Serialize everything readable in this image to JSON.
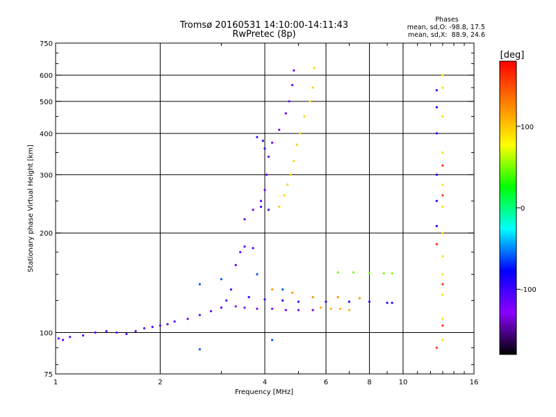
{
  "chart_data": {
    "type": "scatter",
    "title": "Tromsø 20160531 14:10:00-14:11:43",
    "subtitle": "RwPretec (8p)",
    "xlabel": "Frequency [MHz]",
    "ylabel": "Stationary phase Virtual Height [km]",
    "xscale": "log",
    "yscale": "log",
    "xlim": [
      1,
      16
    ],
    "ylim": [
      75,
      750
    ],
    "xticks": [
      {
        "value": 1,
        "label": "1"
      },
      {
        "value": 2,
        "label": "2"
      },
      {
        "value": 4,
        "label": "4"
      },
      {
        "value": 6,
        "label": "6"
      },
      {
        "value": 8,
        "label": "8"
      },
      {
        "value": 10,
        "label": "10"
      },
      {
        "value": 16,
        "label": "16"
      }
    ],
    "yticks": [
      {
        "value": 75,
        "label": "75"
      },
      {
        "value": 100,
        "label": "100"
      },
      {
        "value": 200,
        "label": "200"
      },
      {
        "value": 300,
        "label": "300"
      },
      {
        "value": 400,
        "label": "400"
      },
      {
        "value": 500,
        "label": "500"
      },
      {
        "value": 600,
        "label": "600"
      },
      {
        "value": 750,
        "label": "750"
      }
    ],
    "grid_x": [
      2,
      4,
      6,
      8,
      10
    ],
    "grid_y": [
      100,
      200,
      300,
      400,
      500,
      600
    ],
    "phases_info": {
      "title": "Phases",
      "line_o": "mean, sd,O: -98.8, 17.5",
      "line_x": "mean, sd,X:  88.9, 24.6"
    },
    "colorbar": {
      "label": "[deg]",
      "range": [
        -180,
        180
      ],
      "ticks": [
        {
          "value": 100,
          "label": "100"
        },
        {
          "value": 0,
          "label": "0"
        },
        {
          "value": -100,
          "label": "-100"
        }
      ],
      "colormap": [
        "#000000",
        "#8b00ff",
        "#0000ff",
        "#00ffff",
        "#00ff00",
        "#ffff00",
        "#ff8000",
        "#ff0000"
      ]
    },
    "series": [
      {
        "phase": -110,
        "points": [
          [
            1.02,
            96
          ],
          [
            1.05,
            95
          ],
          [
            1.1,
            97
          ],
          [
            1.2,
            98
          ],
          [
            1.3,
            100
          ],
          [
            1.4,
            101
          ],
          [
            1.5,
            100
          ],
          [
            1.6,
            99
          ],
          [
            1.7,
            101
          ],
          [
            1.8,
            103
          ],
          [
            1.9,
            104
          ],
          [
            2.0,
            105
          ],
          [
            2.1,
            106
          ],
          [
            2.2,
            108
          ],
          [
            2.4,
            110
          ],
          [
            2.6,
            113
          ],
          [
            2.8,
            116
          ],
          [
            3.0,
            119
          ],
          [
            3.1,
            125
          ],
          [
            3.2,
            135
          ],
          [
            3.3,
            160
          ],
          [
            3.4,
            175
          ],
          [
            3.5,
            182
          ],
          [
            3.7,
            180
          ]
        ]
      },
      {
        "phase": -120,
        "points": [
          [
            3.3,
            120
          ],
          [
            3.5,
            119
          ],
          [
            3.8,
            118
          ],
          [
            4.2,
            118
          ],
          [
            4.6,
            117
          ],
          [
            5.0,
            117
          ],
          [
            5.5,
            117
          ]
        ]
      },
      {
        "phase": -95,
        "points": [
          [
            3.6,
            128
          ],
          [
            4.0,
            126
          ],
          [
            4.5,
            125
          ],
          [
            5.0,
            124
          ],
          [
            6.0,
            124
          ],
          [
            7.0,
            124
          ],
          [
            8.0,
            124
          ],
          [
            9.0,
            123
          ],
          [
            9.3,
            123
          ]
        ]
      },
      {
        "phase": -115,
        "points": [
          [
            3.5,
            220
          ],
          [
            3.7,
            235
          ],
          [
            3.9,
            250
          ],
          [
            4.0,
            270
          ],
          [
            4.05,
            300
          ],
          [
            4.1,
            340
          ],
          [
            4.2,
            375
          ],
          [
            4.4,
            410
          ],
          [
            4.6,
            460
          ],
          [
            4.7,
            500
          ],
          [
            4.8,
            560
          ],
          [
            4.85,
            620
          ]
        ]
      },
      {
        "phase": -100,
        "points": [
          [
            3.8,
            390
          ],
          [
            3.95,
            380
          ],
          [
            4.0,
            360
          ],
          [
            3.9,
            240
          ],
          [
            4.1,
            235
          ]
        ]
      },
      {
        "phase": 95,
        "points": [
          [
            4.4,
            240
          ],
          [
            4.55,
            260
          ],
          [
            4.65,
            280
          ],
          [
            4.75,
            300
          ],
          [
            4.85,
            330
          ],
          [
            4.95,
            370
          ],
          [
            5.05,
            400
          ],
          [
            5.2,
            450
          ],
          [
            5.4,
            500
          ],
          [
            5.5,
            550
          ],
          [
            5.55,
            630
          ]
        ]
      },
      {
        "phase": 110,
        "points": [
          [
            5.8,
            119
          ],
          [
            6.2,
            118
          ],
          [
            6.6,
            118
          ],
          [
            7.0,
            117
          ]
        ]
      },
      {
        "phase": 50,
        "points": [
          [
            6.5,
            152
          ],
          [
            7.2,
            152
          ],
          [
            8.0,
            151
          ],
          [
            8.8,
            151
          ],
          [
            9.3,
            151
          ]
        ]
      },
      {
        "phase": 120,
        "points": [
          [
            4.2,
            135
          ],
          [
            4.8,
            132
          ],
          [
            5.5,
            128
          ],
          [
            6.5,
            128
          ],
          [
            7.5,
            127
          ]
        ]
      },
      {
        "phase": -90,
        "points": [
          [
            12.5,
            540
          ],
          [
            12.5,
            480
          ],
          [
            12.5,
            400
          ],
          [
            12.5,
            300
          ],
          [
            12.5,
            250
          ],
          [
            12.5,
            210
          ]
        ]
      },
      {
        "phase": 90,
        "points": [
          [
            13.0,
            600
          ],
          [
            13.0,
            550
          ],
          [
            13.0,
            450
          ],
          [
            13.0,
            350
          ],
          [
            13.0,
            280
          ],
          [
            13.0,
            240
          ],
          [
            13.0,
            200
          ],
          [
            13.0,
            170
          ],
          [
            13.0,
            150
          ],
          [
            13.0,
            130
          ],
          [
            13.0,
            110
          ],
          [
            13.0,
            95
          ]
        ]
      },
      {
        "phase": 160,
        "points": [
          [
            13.0,
            320
          ],
          [
            13.0,
            260
          ],
          [
            12.5,
            185
          ],
          [
            13.0,
            140
          ],
          [
            13.0,
            105
          ],
          [
            12.5,
            90
          ]
        ]
      },
      {
        "phase": -60,
        "points": [
          [
            2.6,
            140
          ],
          [
            3.0,
            145
          ],
          [
            3.8,
            150
          ],
          [
            4.5,
            135
          ],
          [
            2.6,
            89
          ],
          [
            4.2,
            95
          ]
        ]
      }
    ]
  }
}
